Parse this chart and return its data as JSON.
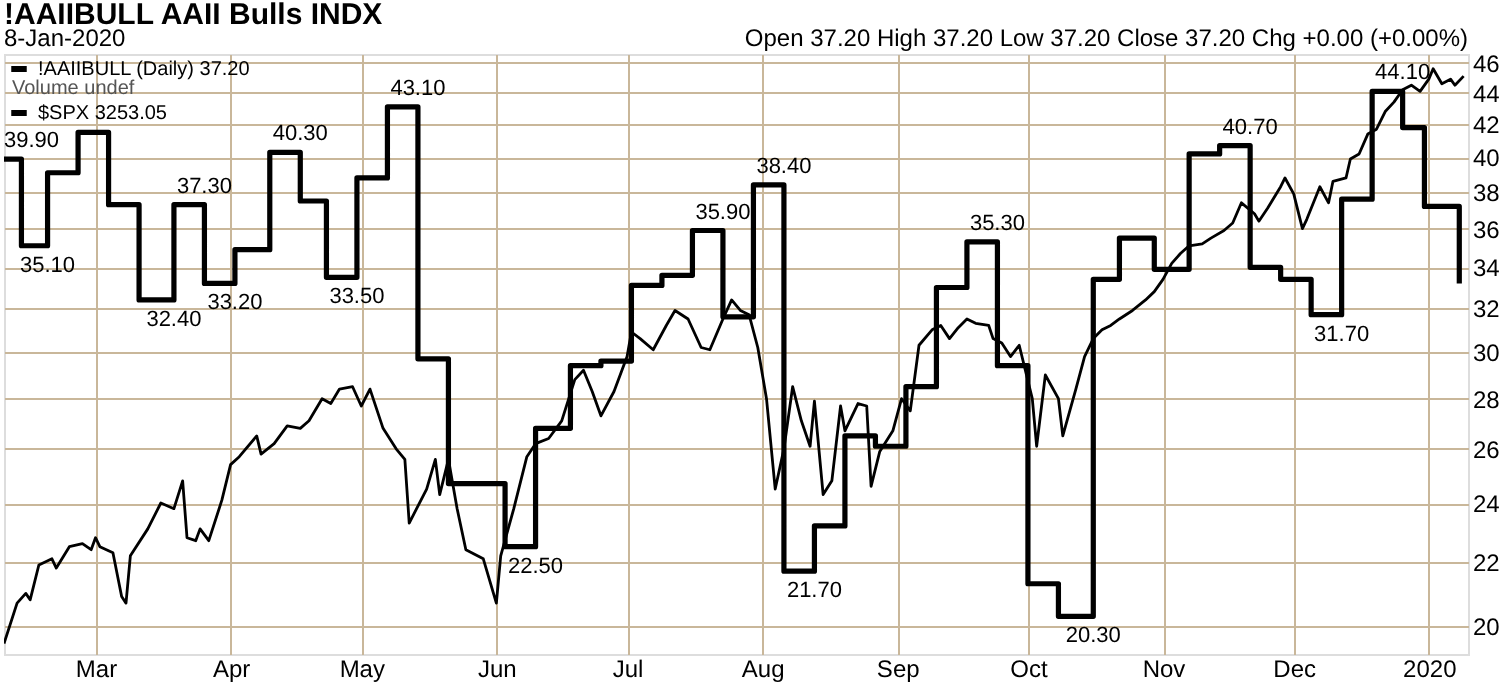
{
  "chart_data": {
    "type": "step",
    "title": "!AAIIBULL AAII Bulls INDX",
    "subtitle": "8-Jan-2020",
    "annotations": [
      "Open 37.20  High 37.20  Low 37.20  Close 37.20  Chg +0.00 (+0.00%)",
      "Volume undef"
    ],
    "xlim": [
      "2019-02-08",
      "2020-01-10"
    ],
    "xticks": [
      {
        "value": "2019-03-01",
        "label": "Mar"
      },
      {
        "value": "2019-04-01",
        "label": "Apr"
      },
      {
        "value": "2019-05-01",
        "label": "May"
      },
      {
        "value": "2019-06-01",
        "label": "Jun"
      },
      {
        "value": "2019-07-01",
        "label": "Jul"
      },
      {
        "value": "2019-08-01",
        "label": "Aug"
      },
      {
        "value": "2019-09-01",
        "label": "Sep"
      },
      {
        "value": "2019-10-01",
        "label": "Oct"
      },
      {
        "value": "2019-11-01",
        "label": "Nov"
      },
      {
        "value": "2019-12-01",
        "label": "Dec"
      },
      {
        "value": "2020-01-01",
        "label": "2020"
      }
    ],
    "ylim": [
      19.2,
      46.6
    ],
    "yticks": [
      20,
      22,
      24,
      26,
      28,
      30,
      32,
      34,
      36,
      38,
      40,
      42,
      44,
      46
    ],
    "log": true,
    "grid": true,
    "legend": "top left",
    "series": [
      {
        "name": "!AAIIBULL (Daily) 37.20",
        "color": "#000000",
        "x": [
          "2019-02-08",
          "2019-02-12",
          "2019-02-18",
          "2019-02-25",
          "2019-03-04",
          "2019-03-11",
          "2019-03-19",
          "2019-03-26",
          "2019-04-02",
          "2019-04-10",
          "2019-04-17",
          "2019-04-23",
          "2019-04-30",
          "2019-05-07",
          "2019-05-14",
          "2019-05-21",
          "2019-06-03",
          "2019-06-10",
          "2019-06-18",
          "2019-06-25",
          "2019-07-02",
          "2019-07-09",
          "2019-07-16",
          "2019-07-23",
          "2019-07-30",
          "2019-08-06",
          "2019-08-13",
          "2019-08-20",
          "2019-08-27",
          "2019-09-03",
          "2019-09-10",
          "2019-09-17",
          "2019-09-24",
          "2019-10-01",
          "2019-10-08",
          "2019-10-16",
          "2019-10-22",
          "2019-10-30",
          "2019-11-07",
          "2019-11-14",
          "2019-11-21",
          "2019-11-28",
          "2019-12-05",
          "2019-12-12",
          "2019-12-19",
          "2019-12-26",
          "2019-12-31",
          "2020-01-08"
        ],
        "values": [
          39.9,
          35.1,
          39.1,
          41.5,
          37.3,
          32.4,
          37.3,
          33.2,
          34.9,
          40.3,
          37.5,
          33.5,
          38.8,
          43.1,
          29.7,
          24.7,
          22.5,
          26.8,
          29.4,
          29.6,
          33.1,
          33.6,
          35.9,
          31.6,
          38.4,
          21.7,
          23.2,
          26.5,
          26.1,
          28.5,
          33.0,
          35.3,
          29.4,
          21.3,
          20.3,
          33.4,
          35.5,
          33.9,
          40.2,
          40.7,
          34.0,
          33.4,
          31.7,
          37.6,
          44.1,
          41.8,
          37.2,
          33.2
        ],
        "value_labels": [
          "39.90",
          "35.10",
          null,
          null,
          null,
          "32.40",
          "37.30",
          "33.20",
          null,
          "40.30",
          null,
          "33.50",
          null,
          "43.10",
          null,
          null,
          "22.50",
          null,
          null,
          null,
          null,
          null,
          "35.90",
          null,
          "38.40",
          "21.70",
          null,
          null,
          null,
          null,
          null,
          "35.30",
          null,
          null,
          "20.30",
          null,
          null,
          null,
          null,
          "40.70",
          null,
          null,
          "31.70",
          null,
          "44.10",
          null,
          null,
          null
        ]
      },
      {
        "name": "$SPX 3253.05",
        "type": "line",
        "color": "#000000",
        "x": [
          "2019-02-08",
          "2019-02-11",
          "2019-02-13",
          "2019-02-14",
          "2019-02-16",
          "2019-02-19",
          "2019-02-20",
          "2019-02-23",
          "2019-02-26",
          "2019-02-28",
          "2019-03-01",
          "2019-03-02",
          "2019-03-05",
          "2019-03-07",
          "2019-03-08",
          "2019-03-09",
          "2019-03-13",
          "2019-03-16",
          "2019-03-19",
          "2019-03-21",
          "2019-03-22",
          "2019-03-24",
          "2019-03-25",
          "2019-03-27",
          "2019-03-30",
          "2019-04-01",
          "2019-04-03",
          "2019-04-07",
          "2019-04-08",
          "2019-04-11",
          "2019-04-14",
          "2019-04-17",
          "2019-04-19",
          "2019-04-22",
          "2019-04-24",
          "2019-04-26",
          "2019-04-29",
          "2019-05-01",
          "2019-05-03",
          "2019-05-06",
          "2019-05-09",
          "2019-05-11",
          "2019-05-12",
          "2019-05-16",
          "2019-05-18",
          "2019-05-19",
          "2019-05-21",
          "2019-05-23",
          "2019-05-25",
          "2019-05-29",
          "2019-06-01",
          "2019-06-02",
          "2019-06-05",
          "2019-06-08",
          "2019-06-10",
          "2019-06-13",
          "2019-06-16",
          "2019-06-19",
          "2019-06-21",
          "2019-06-23",
          "2019-06-25",
          "2019-06-28",
          "2019-07-01",
          "2019-07-02",
          "2019-07-04",
          "2019-07-07",
          "2019-07-10",
          "2019-07-12",
          "2019-07-15",
          "2019-07-18",
          "2019-07-20",
          "2019-07-23",
          "2019-07-25",
          "2019-07-27",
          "2019-07-29",
          "2019-07-31",
          "2019-08-02",
          "2019-08-04",
          "2019-08-06",
          "2019-08-08",
          "2019-08-10",
          "2019-08-12",
          "2019-08-13",
          "2019-08-15",
          "2019-08-17",
          "2019-08-19",
          "2019-08-20",
          "2019-08-23",
          "2019-08-25",
          "2019-08-26",
          "2019-08-28",
          "2019-08-31",
          "2019-09-02",
          "2019-09-04",
          "2019-09-06",
          "2019-09-09",
          "2019-09-11",
          "2019-09-13",
          "2019-09-15",
          "2019-09-17",
          "2019-09-19",
          "2019-09-22",
          "2019-09-23",
          "2019-09-25",
          "2019-09-27",
          "2019-09-29",
          "2019-10-02",
          "2019-10-03",
          "2019-10-05",
          "2019-10-08",
          "2019-10-09",
          "2019-10-12",
          "2019-10-14",
          "2019-10-16",
          "2019-10-18",
          "2019-10-20",
          "2019-10-22",
          "2019-10-25",
          "2019-10-28",
          "2019-10-30",
          "2019-11-01",
          "2019-11-03",
          "2019-11-05",
          "2019-11-07",
          "2019-11-10",
          "2019-11-12",
          "2019-11-15",
          "2019-11-17",
          "2019-11-19",
          "2019-11-22",
          "2019-11-23",
          "2019-11-25",
          "2019-11-28",
          "2019-11-29",
          "2019-12-01",
          "2019-12-03",
          "2019-12-04",
          "2019-12-07",
          "2019-12-09",
          "2019-12-10",
          "2019-12-13",
          "2019-12-14",
          "2019-12-16",
          "2019-12-18",
          "2019-12-20",
          "2019-12-22",
          "2019-12-24",
          "2019-12-26",
          "2019-12-28",
          "2019-12-30",
          "2020-01-01",
          "2020-01-02",
          "2020-01-04",
          "2020-01-06",
          "2020-01-07",
          "2020-01-09"
        ],
        "values": [
          19.5,
          20.7,
          21.0,
          20.8,
          21.9,
          22.1,
          21.8,
          22.5,
          22.6,
          22.4,
          22.8,
          22.5,
          22.3,
          20.9,
          20.7,
          22.2,
          23.1,
          24.0,
          23.8,
          24.8,
          22.8,
          22.7,
          23.1,
          22.7,
          24.1,
          25.4,
          25.7,
          26.5,
          25.8,
          26.2,
          26.9,
          26.8,
          27.1,
          28.0,
          27.8,
          28.4,
          28.5,
          27.7,
          28.4,
          26.8,
          26.0,
          25.6,
          23.3,
          24.5,
          25.6,
          24.3,
          25.6,
          23.8,
          22.4,
          22.1,
          20.7,
          22.2,
          23.8,
          25.7,
          26.2,
          26.4,
          27.1,
          28.8,
          29.2,
          28.3,
          27.3,
          28.3,
          29.8,
          30.9,
          30.6,
          30.1,
          31.2,
          31.9,
          31.5,
          30.2,
          30.1,
          31.5,
          32.4,
          31.9,
          31.7,
          30.2,
          28.0,
          24.5,
          26.0,
          28.5,
          27.1,
          26.1,
          27.9,
          24.3,
          24.8,
          27.7,
          26.7,
          27.8,
          27.7,
          24.6,
          25.9,
          26.7,
          28.0,
          27.5,
          30.3,
          31.0,
          31.2,
          30.6,
          31.1,
          31.5,
          31.3,
          31.2,
          30.6,
          30.4,
          29.8,
          30.3,
          28.0,
          26.1,
          29.0,
          28.0,
          26.5,
          28.4,
          29.8,
          30.6,
          31.0,
          31.2,
          31.5,
          31.9,
          32.4,
          32.8,
          33.4,
          34.2,
          34.7,
          35.1,
          35.2,
          35.5,
          35.9,
          36.3,
          37.4,
          36.8,
          36.4,
          37.1,
          38.3,
          38.8,
          37.9,
          36.0,
          36.5,
          38.3,
          37.4,
          38.6,
          38.8,
          39.9,
          40.2,
          41.4,
          41.7,
          42.8,
          43.4,
          44.2,
          44.5,
          44.1,
          44.9,
          45.6,
          44.6,
          44.9,
          44.5,
          45.1
        ]
      }
    ]
  }
}
